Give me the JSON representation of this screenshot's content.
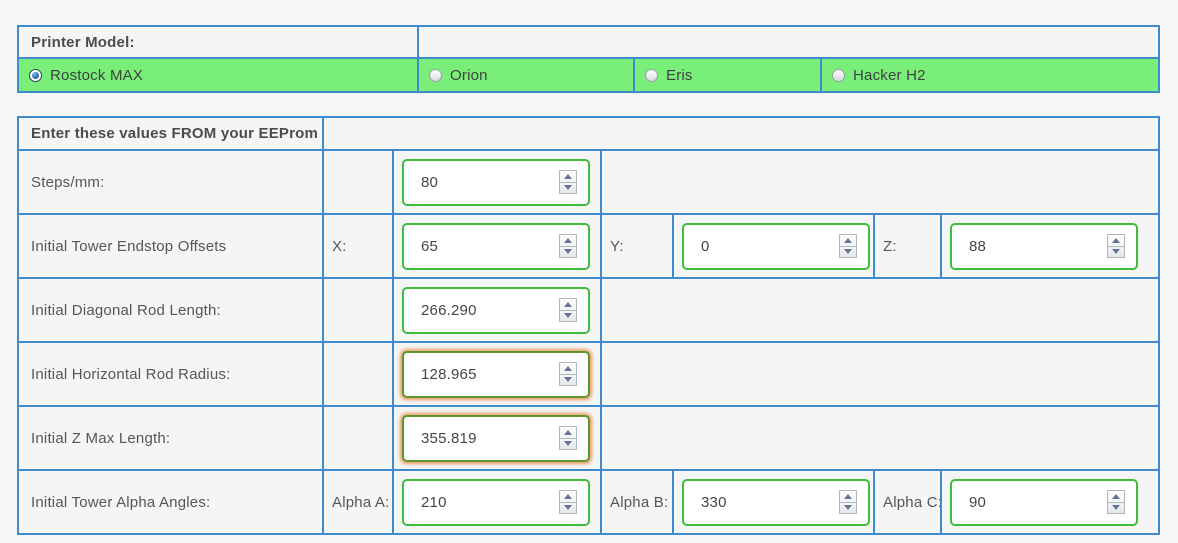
{
  "printer_model_table": {
    "header": "Printer Model:",
    "options": [
      {
        "name": "rostock-max",
        "label": "Rostock MAX",
        "selected": true
      },
      {
        "name": "orion",
        "label": "Orion",
        "selected": false
      },
      {
        "name": "eris",
        "label": "Eris",
        "selected": false
      },
      {
        "name": "hacker-h2",
        "label": "Hacker H2",
        "selected": false
      }
    ]
  },
  "eeprom_table": {
    "header": "Enter these values FROM your EEProm",
    "rows": [
      {
        "label": "Steps/mm:",
        "fields": [
          {
            "name": "steps-per-mm",
            "sub_label": "",
            "value": "80",
            "highlighted": false
          }
        ]
      },
      {
        "label": "Initial Tower Endstop Offsets",
        "fields": [
          {
            "name": "endstop-x",
            "sub_label": "X:",
            "value": "65",
            "highlighted": false
          },
          {
            "name": "endstop-y",
            "sub_label": "Y:",
            "value": "0",
            "highlighted": false
          },
          {
            "name": "endstop-z",
            "sub_label": "Z:",
            "value": "88",
            "highlighted": false
          }
        ]
      },
      {
        "label": "Initial Diagonal Rod Length:",
        "fields": [
          {
            "name": "diagonal-rod-length",
            "sub_label": "",
            "value": "266.290",
            "highlighted": false
          }
        ]
      },
      {
        "label": "Initial Horizontal Rod Radius:",
        "fields": [
          {
            "name": "horizontal-rod-radius",
            "sub_label": "",
            "value": "128.965",
            "highlighted": true
          }
        ]
      },
      {
        "label": "Initial Z Max Length:",
        "fields": [
          {
            "name": "z-max-length",
            "sub_label": "",
            "value": "355.819",
            "highlighted": true
          }
        ]
      },
      {
        "label": "Initial Tower Alpha Angles:",
        "fields": [
          {
            "name": "alpha-a",
            "sub_label": "Alpha A:",
            "value": "210",
            "highlighted": false
          },
          {
            "name": "alpha-b",
            "sub_label": "Alpha B:",
            "value": "330",
            "highlighted": false
          },
          {
            "name": "alpha-c",
            "sub_label": "Alpha C:",
            "value": "90",
            "highlighted": false
          }
        ]
      }
    ]
  },
  "colors": {
    "table_border_blue": "#3e8bce",
    "selected_row_green": "#79ee79",
    "input_border_green": "#3cbe3c",
    "highlight_border_olive": "#5a9a2d",
    "highlight_glow_orange": "#ee9b66"
  }
}
